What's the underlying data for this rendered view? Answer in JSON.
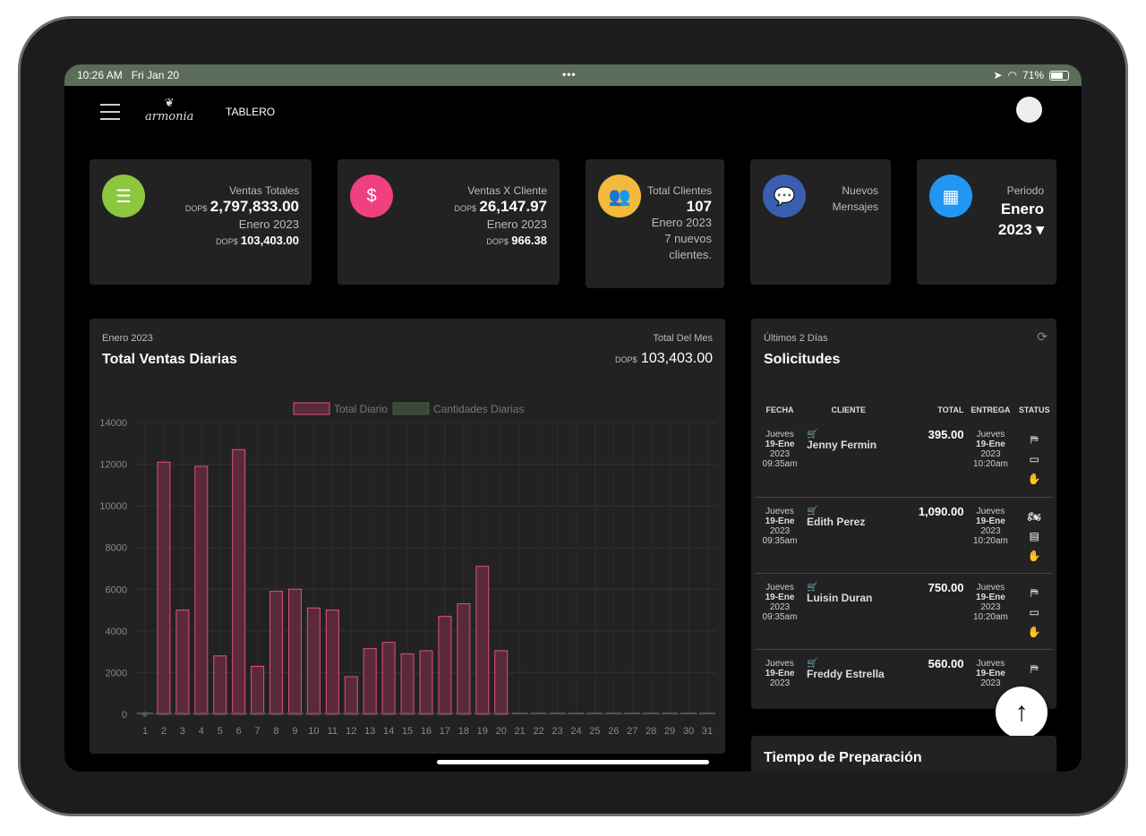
{
  "status": {
    "time": "10:26 AM",
    "date": "Fri Jan 20",
    "battery": "71%"
  },
  "header": {
    "logo": "armonia",
    "title": "TABLERO"
  },
  "kpis": [
    {
      "label": "Ventas Totales",
      "currency": "DOP$",
      "value": "2,797,833.00",
      "period": "Enero 2023",
      "sub_currency": "DOP$",
      "sub_value": "103,403.00",
      "color": "#8dc63f",
      "icon": "coins-icon"
    },
    {
      "label": "Ventas X Cliente",
      "currency": "DOP$",
      "value": "26,147.97",
      "period": "Enero 2023",
      "sub_currency": "DOP$",
      "sub_value": "966.38",
      "color": "#f0407f",
      "icon": "invoice-dollar-icon"
    },
    {
      "label": "Total Clientes",
      "value": "107",
      "period": "Enero 2023",
      "sub": "7 nuevos clientes.",
      "color": "#f3b93c",
      "icon": "users-icon"
    },
    {
      "label": "Nuevos Mensajes",
      "color": "#3a5fb0",
      "icon": "chat-icon"
    },
    {
      "label": "Periodo",
      "value": "Enero 2023",
      "color": "#2196f3",
      "icon": "calendar-icon"
    }
  ],
  "sales": {
    "period": "Enero 2023",
    "title": "Total Ventas Diarias",
    "total_label": "Total Del Mes",
    "currency": "DOP$",
    "total": "103,403.00"
  },
  "chart_data": {
    "type": "bar",
    "title": "Total Ventas Diarias",
    "categories": [
      "1",
      "2",
      "3",
      "4",
      "5",
      "6",
      "7",
      "8",
      "9",
      "10",
      "11",
      "12",
      "13",
      "14",
      "15",
      "16",
      "17",
      "18",
      "19",
      "20",
      "21",
      "22",
      "23",
      "24",
      "25",
      "26",
      "27",
      "28",
      "29",
      "30",
      "31"
    ],
    "series": [
      {
        "name": "Total Diario",
        "color": "#e0507a",
        "values": [
          0,
          12100,
          5000,
          11900,
          2800,
          12700,
          2300,
          5900,
          6000,
          5100,
          5000,
          1800,
          3150,
          3450,
          2900,
          3050,
          4700,
          5300,
          7100,
          3050,
          0,
          0,
          0,
          0,
          0,
          0,
          0,
          0,
          0,
          0,
          0
        ]
      },
      {
        "name": "Cantidades Diarias",
        "color": "#4a5a48",
        "values": [
          0,
          5,
          3,
          5,
          2,
          6,
          2,
          4,
          4,
          3,
          3,
          2,
          3,
          3,
          3,
          3,
          4,
          4,
          4,
          2,
          0,
          0,
          0,
          0,
          0,
          0,
          0,
          0,
          0,
          0,
          0
        ]
      }
    ],
    "yticks": [
      "0",
      "2000",
      "4000",
      "6000",
      "8000",
      "10000",
      "12000",
      "14000"
    ],
    "ylim": [
      0,
      14000
    ],
    "legend": "top"
  },
  "requests": {
    "subtitle": "Últimos 2 Días",
    "title": "Solicitudes",
    "headers": [
      "FECHA",
      "CLIENTE",
      "TOTAL",
      "ENTREGA",
      "STATUS"
    ],
    "rows": [
      {
        "day": "Jueves",
        "date": "19-Ene",
        "year": "2023",
        "time": "09:35am",
        "name": "Jenny Fermin",
        "total": "395.00",
        "d_day": "Jueves",
        "d_date": "19-Ene",
        "d_year": "2023",
        "d_time": "10:20am",
        "s": [
          "⛿",
          "▭",
          "✋"
        ]
      },
      {
        "day": "Jueves",
        "date": "19-Ene",
        "year": "2023",
        "time": "09:35am",
        "name": "Edith Perez",
        "total": "1,090.00",
        "d_day": "Jueves",
        "d_date": "19-Ene",
        "d_year": "2023",
        "d_time": "10:20am",
        "s": [
          "🏍",
          "▤",
          "✋"
        ]
      },
      {
        "day": "Jueves",
        "date": "19-Ene",
        "year": "2023",
        "time": "09:35am",
        "name": "Luisin Duran",
        "total": "750.00",
        "d_day": "Jueves",
        "d_date": "19-Ene",
        "d_year": "2023",
        "d_time": "10:20am",
        "s": [
          "⛿",
          "▭",
          "✋"
        ]
      },
      {
        "day": "Jueves",
        "date": "19-Ene",
        "year": "2023",
        "time": "",
        "name": "Freddy Estrella",
        "total": "560.00",
        "d_day": "Jueves",
        "d_date": "19-Ene",
        "d_year": "2023",
        "d_time": "",
        "s": [
          "⛿",
          "",
          ""
        ]
      }
    ]
  },
  "prep": {
    "title": "Tiempo de Preparación"
  }
}
